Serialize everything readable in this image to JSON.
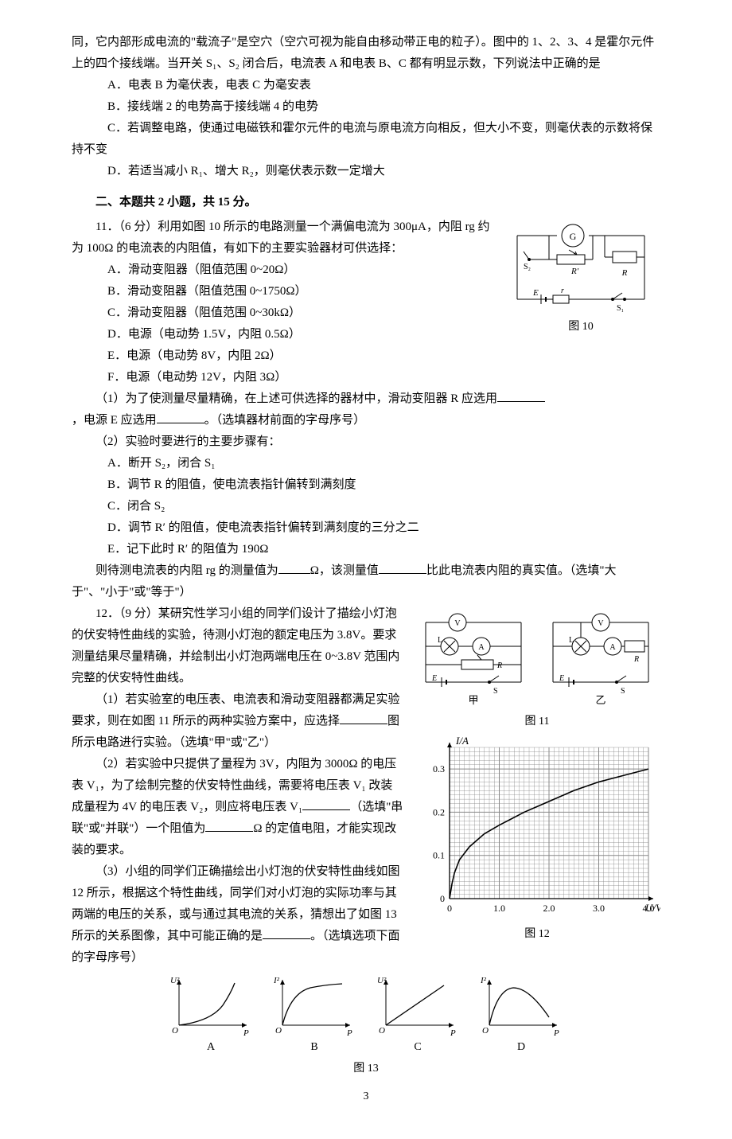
{
  "q10": {
    "intro_cont": "同，它内部形成电流的\"载流子\"是空穴（空穴可视为能自由移动带正电的粒子）。图中的 1、2、3、4 是霍尔元件上的四个接线端。当开关 S₁、S₂ 闭合后，电流表 A 和电表 B、C 都有明显示数，下列说法中正确的是",
    "opts": {
      "A": "A．电表 B 为毫伏表，电表 C 为毫安表",
      "B": "B．接线端 2 的电势高于接线端 4 的电势",
      "C": "C．若调整电路，使通过电磁铁和霍尔元件的电流与原电流方向相反，但大小不变，则毫伏表的示数将保持不变",
      "D": "D．若适当减小 R₁、增大 R₂，则毫伏表示数一定增大"
    }
  },
  "sec2_title": "二、本题共 2 小题，共 15 分。",
  "q11": {
    "stem": "11．（6 分）利用如图 10 所示的电路测量一个满偏电流为 300μA，内阻 rg 约为 100Ω 的电流表的内阻值，有如下的主要实验器材可供选择：",
    "opts": {
      "A": "A．滑动变阻器（阻值范围 0~20Ω）",
      "B": "B．滑动变阻器（阻值范围 0~1750Ω）",
      "C": "C．滑动变阻器（阻值范围 0~30kΩ）",
      "D": "D．电源（电动势 1.5V，内阻 0.5Ω）",
      "E": "E．电源（电动势 8V，内阻 2Ω）",
      "F": "F．电源（电动势 12V，内阻 3Ω）"
    },
    "p1a": "（1）为了使测量尽量精确，在上述可供选择的器材中，滑动变阻器 R 应选用",
    "p1b": "，电源 E 应选用",
    "p1c": "。（选填器材前面的字母序号）",
    "p2": "（2）实验时要进行的主要步骤有：",
    "steps": {
      "A": "A．断开 S₂，闭合 S₁",
      "B": "B．调节 R 的阻值，使电流表指针偏转到满刻度",
      "C": "C．闭合 S₂",
      "D": "D．调节 R′ 的阻值，使电流表指针偏转到满刻度的三分之二",
      "E": "E．记下此时 R′ 的阻值为 190Ω"
    },
    "tail1": "则待测电流表的内阻 rg 的测量值为",
    "tail2": "Ω，该测量值",
    "tail3": "比此电流表内阻的真实值。（选填\"大于\"、\"小于\"或\"等于\"）",
    "fig_label": "图 10"
  },
  "q12": {
    "stem": "12．（9 分）某研究性学习小组的同学们设计了描绘小灯泡的伏安特性曲线的实验，待测小灯泡的额定电压为 3.8V。要求测量结果尽量精确，并绘制出小灯泡两端电压在 0~3.8V 范围内完整的伏安特性曲线。",
    "p1a": "（1）若实验室的电压表、电流表和滑动变阻器都满足实验要求，则在如图 11 所示的两种实验方案中，应选择",
    "p1b": "图所示电路进行实验。（选填\"甲\"或\"乙\"）",
    "p2a": "（2）若实验中只提供了量程为 3V，内阻为 3000Ω 的电压表 V₁，为了绘制完整的伏安特性曲线，需要将电压表 V₁ 改装成量程为 4V 的电压表 V₂，则应将电压表 V₁",
    "p2b": "（选填\"串联\"或\"并联\"）一个阻值为",
    "p2c": "Ω 的定值电阻，才能实现改装的要求。",
    "p3a": "（3）小组的同学们正确描绘出小灯泡的伏安特性曲线如图 12 所示，根据这个特性曲线，同学们对小灯泡的实际功率与其两端的电压的关系，或与通过其电流的关系，猜想出了如图 13 所示的关系图像，其中可能正确的是",
    "p3b": "。（选填选项下面的字母序号）",
    "fig11_label": "图 11",
    "fig12_label": "图 12",
    "fig13_label": "图 13",
    "fig11_sub_a": "甲",
    "fig11_sub_b": "乙",
    "fig12_ylabel": "I/A",
    "fig12_xlabel": "U/V",
    "fig12_yticks": [
      "0",
      "0.1",
      "0.2",
      "0.3"
    ],
    "fig12_xticks": [
      "0",
      "1.0",
      "2.0",
      "3.0",
      "4.0"
    ],
    "fig12_curve": [
      [
        0,
        0
      ],
      [
        0.05,
        0.035
      ],
      [
        0.1,
        0.06
      ],
      [
        0.2,
        0.09
      ],
      [
        0.4,
        0.12
      ],
      [
        0.7,
        0.15
      ],
      [
        1.0,
        0.17
      ],
      [
        1.5,
        0.2
      ],
      [
        2.0,
        0.225
      ],
      [
        2.5,
        0.25
      ],
      [
        3.0,
        0.27
      ],
      [
        3.5,
        0.285
      ],
      [
        4.0,
        0.3
      ]
    ],
    "fig12_xmax": 4.0,
    "fig12_ymax": 0.35,
    "fig12_grid_color": "#888",
    "fig12_line_color": "#000",
    "fig12_bg": "#fff",
    "fig13_opts": {
      "A": {
        "ylabel": "U²",
        "xlabel": "P",
        "shape": "concave_up"
      },
      "B": {
        "ylabel": "I²",
        "xlabel": "P",
        "shape": "concave_down"
      },
      "C": {
        "ylabel": "U²",
        "xlabel": "P",
        "shape": "linear"
      },
      "D": {
        "ylabel": "I²",
        "xlabel": "P",
        "shape": "hump"
      }
    }
  },
  "page_num": "3"
}
